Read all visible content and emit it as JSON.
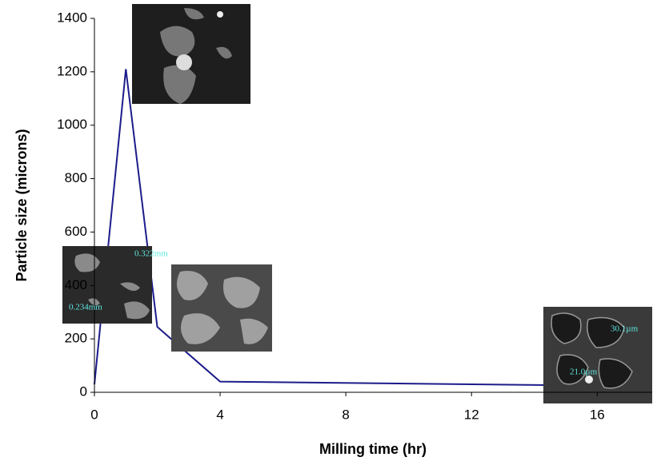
{
  "chart_data": {
    "type": "line",
    "x_label": "Milling time (hr)",
    "y_label": "Particle size (microns)",
    "x": [
      0,
      1,
      2,
      4,
      16
    ],
    "series": [
      {
        "color": "#1c1c8a",
        "values": [
          30,
          1210,
          245,
          40,
          25
        ]
      }
    ],
    "xlim": [
      0,
      17.75
    ],
    "xticks": [
      0,
      4,
      8,
      12,
      16
    ],
    "ylim": [
      0,
      1400
    ],
    "yticks": [
      0,
      200,
      400,
      600,
      800,
      1000,
      1200,
      1400
    ],
    "grid": false,
    "inset_labels": [
      "0.322mm",
      "0.234mm",
      "30.1µm",
      "21.0µm"
    ]
  }
}
